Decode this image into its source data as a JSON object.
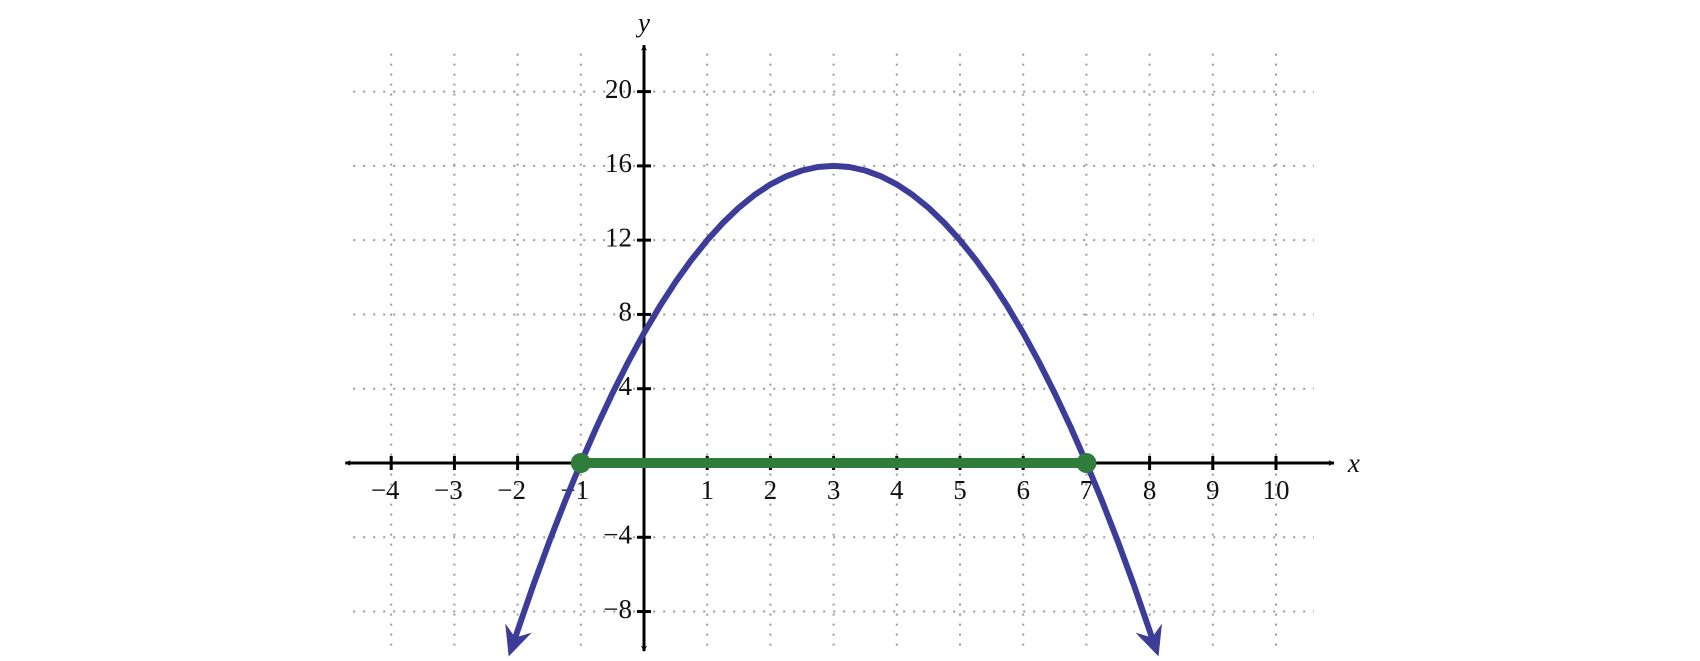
{
  "chart_data": {
    "type": "line",
    "x_label": "x",
    "y_label": "y",
    "xlim": [
      -4.6,
      10.6
    ],
    "ylim": [
      -9.7,
      22.5
    ],
    "xticks": [
      {
        "value": -4,
        "label": "−4"
      },
      {
        "value": -3,
        "label": "−3"
      },
      {
        "value": -2,
        "label": "−2"
      },
      {
        "value": -1,
        "label": "−1"
      },
      1,
      2,
      3,
      4,
      5,
      6,
      7,
      8,
      9,
      10
    ],
    "yticks": [
      {
        "value": -8,
        "label": "−8"
      },
      {
        "value": -4,
        "label": "−4"
      },
      4,
      8,
      12,
      16,
      20
    ],
    "grid": true,
    "series": [
      {
        "color": "#3c3c99",
        "x": [
          -2.1,
          -1.75,
          -1.5,
          -1.25,
          -1,
          -0.75,
          -0.5,
          -0.25,
          0,
          0.25,
          0.5,
          0.75,
          1,
          1.25,
          1.5,
          1.75,
          2,
          2.25,
          2.5,
          2.75,
          3,
          3.25,
          3.5,
          3.75,
          4,
          4.25,
          4.5,
          4.75,
          5,
          5.25,
          5.5,
          5.75,
          6,
          6.25,
          6.5,
          6.75,
          7,
          7.25,
          7.5,
          7.75,
          8.1
        ],
        "values": [
          -10.01,
          -6.5625,
          -4.25,
          -2.0625,
          0,
          1.9375,
          3.75,
          5.4375,
          7,
          8.4375,
          9.75,
          10.9375,
          12,
          12.9375,
          13.75,
          14.4375,
          15,
          15.4375,
          15.75,
          15.9375,
          16,
          15.9375,
          15.75,
          15.4375,
          15,
          14.4375,
          13.75,
          12.9375,
          12,
          10.9375,
          9.75,
          8.4375,
          7,
          5.4375,
          3.75,
          1.9375,
          0,
          -2.0625,
          -4.25,
          -6.5625,
          -10.01
        ]
      },
      {
        "color": "#2e7d3a",
        "x": [
          -1,
          7
        ],
        "values": [
          0,
          0
        ]
      }
    ]
  }
}
